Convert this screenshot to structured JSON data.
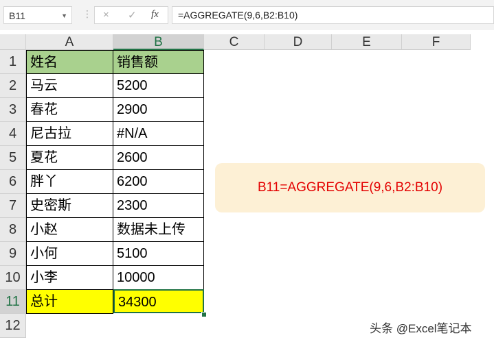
{
  "name_box": "B11",
  "formula_bar": {
    "cancel_icon": "×",
    "enter_icon": "✓",
    "fx_label": "fx",
    "formula": "=AGGREGATE(9,6,B2:B10)"
  },
  "columns": [
    "A",
    "B",
    "C",
    "D",
    "E",
    "F"
  ],
  "rows": [
    {
      "num": "1",
      "a": "姓名",
      "b": "销售额"
    },
    {
      "num": "2",
      "a": "马云",
      "b": "5200"
    },
    {
      "num": "3",
      "a": "春花",
      "b": "2900"
    },
    {
      "num": "4",
      "a": "尼古拉",
      "b": "#N/A"
    },
    {
      "num": "5",
      "a": "夏花",
      "b": "2600"
    },
    {
      "num": "6",
      "a": "胖丫",
      "b": "6200"
    },
    {
      "num": "7",
      "a": "史密斯",
      "b": "2300"
    },
    {
      "num": "8",
      "a": "小赵",
      "b": "数据未上传"
    },
    {
      "num": "9",
      "a": "小何",
      "b": "5100"
    },
    {
      "num": "10",
      "a": "小李",
      "b": "10000"
    },
    {
      "num": "11",
      "a": "总计",
      "b": "34300"
    },
    {
      "num": "12",
      "a": "",
      "b": ""
    }
  ],
  "callout": "B11=AGGREGATE(9,6,B2:B10)",
  "watermark": "头条 @Excel笔记本",
  "colors": {
    "header_fill": "#a9d18e",
    "total_fill": "#ffff00",
    "selection": "#217346",
    "callout_text": "#e30000",
    "callout_bg": "#fdf0d5"
  }
}
